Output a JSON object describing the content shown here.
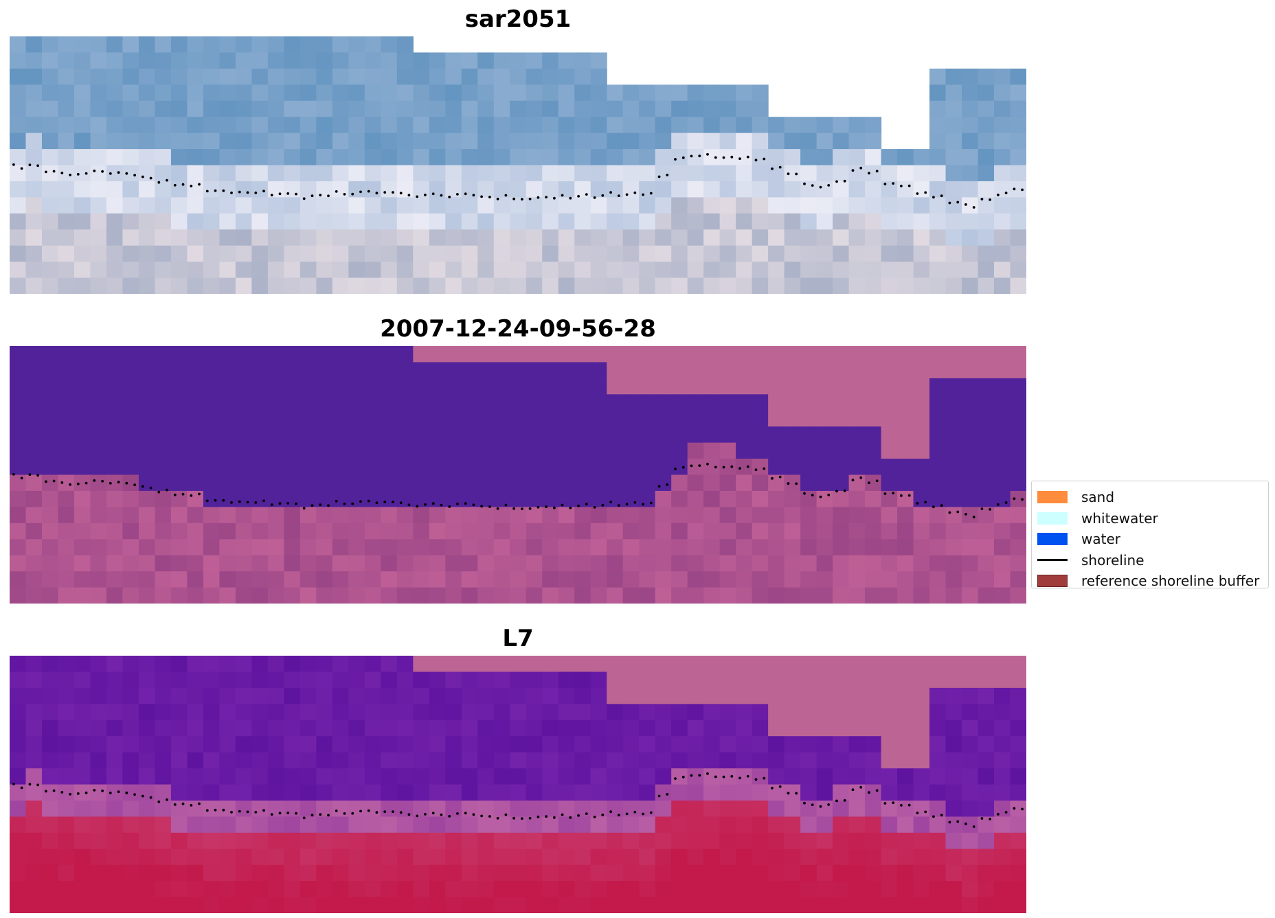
{
  "panels": [
    {
      "title": "sar2051",
      "kind": "rgb"
    },
    {
      "title": "2007-12-24-09-56-28",
      "kind": "classified"
    },
    {
      "title": "L7",
      "kind": "index"
    }
  ],
  "legend": {
    "items": [
      {
        "label": "sand",
        "color": "#FF8C3C",
        "type": "patch"
      },
      {
        "label": "whitewater",
        "color": "#CCFFFF",
        "type": "patch"
      },
      {
        "label": "water",
        "color": "#0052F0",
        "type": "patch"
      },
      {
        "label": "shoreline",
        "color": "#000000",
        "type": "line"
      },
      {
        "label": "reference shoreline buffer",
        "color": "#A03C3C",
        "type": "patch"
      }
    ]
  },
  "colors": {
    "water_class": "#52229A",
    "masked": "#BC6594",
    "rgb_sky": "#6E9CC6",
    "index_low": "#5A0EA0",
    "index_high": "#C41848"
  }
}
